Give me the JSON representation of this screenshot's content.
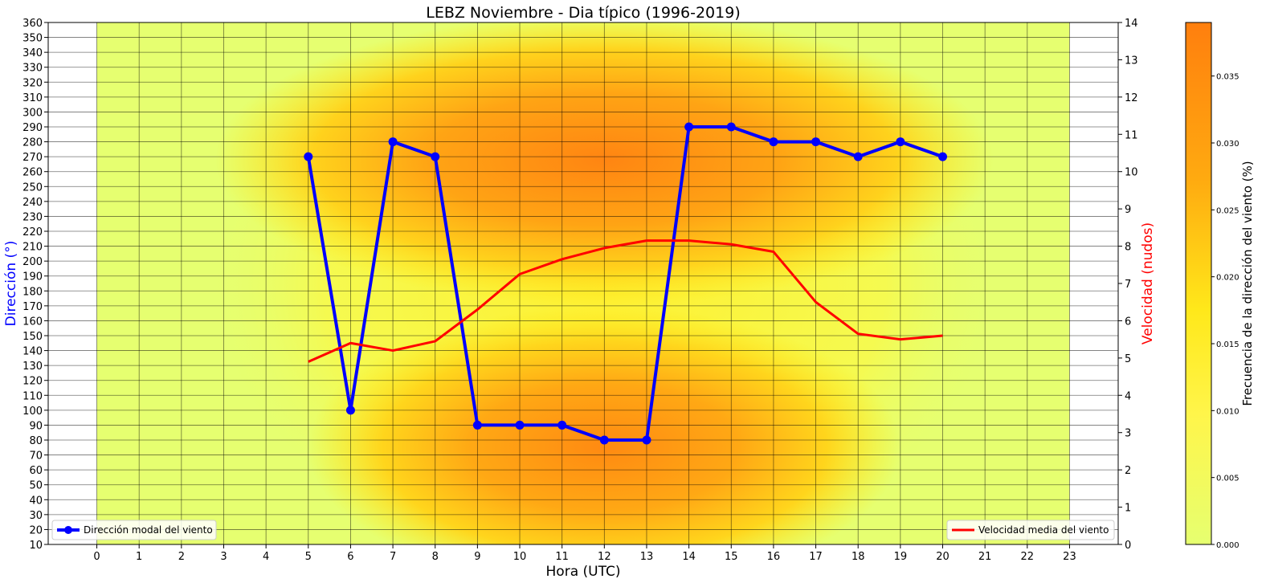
{
  "chart_data": {
    "type": "line",
    "title": "LEBZ Noviembre - Dia típico (1996-2019)",
    "xlabel": "Hora (UTC)",
    "ylabel_left": "Dirección  (°)",
    "ylabel_right": "Velocidad (nudos)",
    "colorbar_label": "Frecuencia de la dirección del viento (%)",
    "xlim": [
      -1.15,
      24.15
    ],
    "ylim_left": [
      10,
      360
    ],
    "ylim_right": [
      0,
      14
    ],
    "x_ticks": [
      0,
      1,
      2,
      3,
      4,
      5,
      6,
      7,
      8,
      9,
      10,
      11,
      12,
      13,
      14,
      15,
      16,
      17,
      18,
      19,
      20,
      21,
      22,
      23
    ],
    "y_left_ticks": [
      10,
      20,
      30,
      40,
      50,
      60,
      70,
      80,
      90,
      100,
      110,
      120,
      130,
      140,
      150,
      160,
      170,
      180,
      190,
      200,
      210,
      220,
      230,
      240,
      250,
      260,
      270,
      280,
      290,
      300,
      310,
      320,
      330,
      340,
      350,
      360
    ],
    "y_right_ticks": [
      0,
      1,
      2,
      3,
      4,
      5,
      6,
      7,
      8,
      9,
      10,
      11,
      12,
      13,
      14
    ],
    "colorbar_ticks": [
      "0.000",
      "0.005",
      "0.010",
      "0.015",
      "0.020",
      "0.025",
      "0.030",
      "0.035"
    ],
    "colorbar_range": [
      0,
      0.039
    ],
    "grid": true,
    "heatmap_colormap": [
      "#e6ff70",
      "#ffe81a",
      "#ff7f0e"
    ],
    "series": [
      {
        "name": "Dirección modal del viento",
        "axis": "left",
        "color": "#0000ff",
        "marker": "circle",
        "x": [
          5,
          6,
          7,
          8,
          9,
          10,
          11,
          12,
          13,
          14,
          15,
          16,
          17,
          18,
          19,
          20
        ],
        "y": [
          270,
          100,
          280,
          270,
          90,
          90,
          90,
          80,
          80,
          290,
          290,
          280,
          280,
          270,
          280,
          270
        ]
      },
      {
        "name": "Velocidad media del viento",
        "axis": "right",
        "color": "#ff0000",
        "marker": "none",
        "x": [
          5,
          6,
          7,
          8,
          9,
          10,
          11,
          12,
          13,
          14,
          15,
          16,
          17,
          18,
          19,
          20
        ],
        "y": [
          4.9,
          5.4,
          5.2,
          5.45,
          6.3,
          7.25,
          7.65,
          7.95,
          8.15,
          8.15,
          8.05,
          7.85,
          6.5,
          5.65,
          5.5,
          5.6
        ]
      }
    ],
    "legend_left": "bottom-left",
    "legend_right": "bottom-right"
  }
}
